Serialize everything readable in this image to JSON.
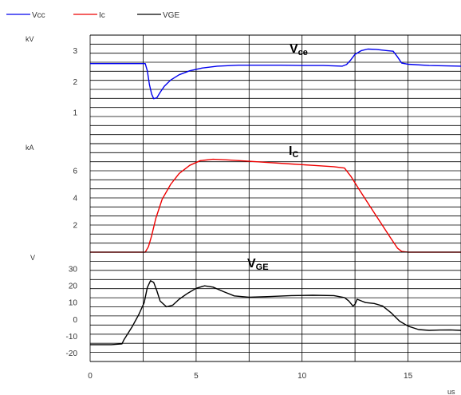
{
  "legend": [
    {
      "name": "Vcc",
      "color": "#0000ee"
    },
    {
      "name": "Ic",
      "color": "#ee0000"
    },
    {
      "name": "VGE",
      "color": "#000000"
    }
  ],
  "x_unit": "us",
  "chart_data": [
    {
      "type": "line",
      "panel": "top",
      "unit": "kV",
      "title": "V",
      "title_sub": "ce",
      "ylim": [
        0,
        3.5
      ],
      "yticks": [
        1,
        2,
        3
      ],
      "xlim": [
        0,
        17.5
      ],
      "grid": true,
      "series": [
        {
          "name": "Vcc",
          "color": "#0000ee",
          "x": [
            0,
            2.6,
            2.7,
            2.8,
            2.9,
            3.0,
            3.15,
            3.3,
            3.5,
            3.8,
            4.2,
            4.7,
            5.3,
            6.0,
            7.0,
            8.0,
            9.0,
            10.0,
            11.0,
            11.9,
            12.1,
            12.3,
            12.5,
            12.8,
            13.1,
            13.5,
            14.0,
            14.3,
            14.5,
            14.7,
            15.0,
            16.0,
            17.5
          ],
          "y": [
            2.58,
            2.58,
            2.35,
            1.9,
            1.6,
            1.45,
            1.48,
            1.65,
            1.85,
            2.05,
            2.22,
            2.35,
            2.44,
            2.5,
            2.53,
            2.53,
            2.53,
            2.52,
            2.52,
            2.5,
            2.55,
            2.7,
            2.88,
            3.0,
            3.05,
            3.04,
            3.0,
            2.98,
            2.8,
            2.6,
            2.56,
            2.52,
            2.5
          ]
        }
      ]
    },
    {
      "type": "line",
      "panel": "middle",
      "unit": "kA",
      "title": "I",
      "title_sub": "C",
      "ylim": [
        0,
        8
      ],
      "yticks": [
        2,
        4,
        6
      ],
      "xlim": [
        0,
        17.5
      ],
      "grid": true,
      "series": [
        {
          "name": "Ic",
          "color": "#ee0000",
          "x": [
            0,
            2.6,
            2.75,
            2.9,
            3.1,
            3.4,
            3.8,
            4.2,
            4.7,
            5.2,
            5.8,
            6.5,
            7.5,
            8.5,
            9.5,
            10.5,
            11.5,
            12.0,
            12.3,
            12.7,
            13.2,
            13.7,
            14.2,
            14.5,
            14.7,
            15.0,
            17.5
          ],
          "y": [
            0,
            0,
            0.4,
            1.2,
            2.5,
            3.9,
            5.0,
            5.8,
            6.4,
            6.75,
            6.85,
            6.8,
            6.7,
            6.6,
            6.5,
            6.4,
            6.3,
            6.2,
            5.6,
            4.6,
            3.4,
            2.2,
            1.0,
            0.3,
            0.05,
            0,
            0
          ]
        }
      ]
    },
    {
      "type": "line",
      "panel": "bottom",
      "unit": "V",
      "title": "V",
      "title_sub": "GE",
      "ylim": [
        -25,
        40
      ],
      "yticks": [
        -20,
        -10,
        0,
        10,
        20,
        30
      ],
      "xticks": [
        0,
        5,
        10,
        15
      ],
      "xlim": [
        0,
        17.5
      ],
      "grid": true,
      "series": [
        {
          "name": "VGE",
          "color": "#000000",
          "x": [
            0,
            0.5,
            1.0,
            1.5,
            1.6,
            1.7,
            2.0,
            2.3,
            2.55,
            2.7,
            2.85,
            3.0,
            3.15,
            3.3,
            3.6,
            3.9,
            4.2,
            4.6,
            5.0,
            5.4,
            5.8,
            6.3,
            6.8,
            7.5,
            8.5,
            9.5,
            10.5,
            11.5,
            12.0,
            12.2,
            12.4,
            12.5,
            12.6,
            12.8,
            13.0,
            13.4,
            13.8,
            14.2,
            14.6,
            15.0,
            15.5,
            16.0,
            16.5,
            17.0,
            17.5
          ],
          "y": [
            -15,
            -15,
            -15,
            -14.5,
            -12,
            -10,
            -4,
            3,
            10,
            19,
            23,
            22,
            17,
            11,
            7.5,
            8.5,
            12,
            15.5,
            18.5,
            20,
            19.2,
            16.5,
            14,
            13.2,
            13.6,
            14.2,
            14.4,
            14.2,
            13,
            11,
            8,
            9,
            12,
            11,
            10,
            9.5,
            8,
            4,
            -1,
            -4,
            -6,
            -6.5,
            -6.3,
            -6.2,
            -6.5
          ]
        }
      ]
    }
  ]
}
